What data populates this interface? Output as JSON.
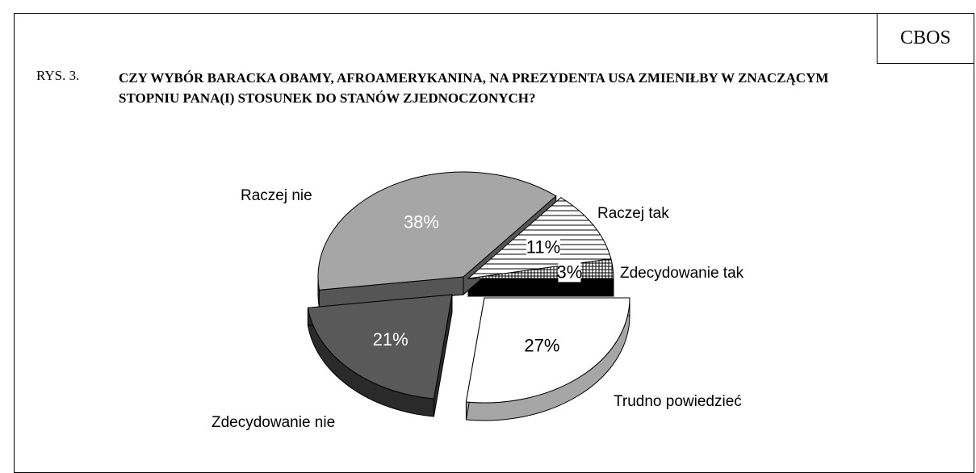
{
  "header": {
    "badge": "CBOS",
    "figure_label": "RYS. 3.",
    "title": "CZY WYBÓR BARACKA OBAMY, AFROAMERYKANINA, NA PREZYDENTA USA ZMIENIŁBY W ZNACZĄCYM STOPNIU PANA(I) STOSUNEK DO STANÓW ZJEDNOCZONYCH?"
  },
  "chart_data": {
    "type": "pie",
    "title": "CZY WYBÓR BARACKA OBAMY, AFROAMERYKANINA, NA PREZYDENTA USA ZMIENIŁBY W ZNACZĄCYM STOPNIU PANA(I) STOSUNEK DO STANÓW ZJEDNOCZONYCH?",
    "slices": [
      {
        "label": "Zdecydowanie tak",
        "value": 3,
        "value_label": "3%"
      },
      {
        "label": "Raczej tak",
        "value": 11,
        "value_label": "11%"
      },
      {
        "label": "Raczej nie",
        "value": 38,
        "value_label": "38%"
      },
      {
        "label": "Zdecydowanie nie",
        "value": 21,
        "value_label": "21%"
      },
      {
        "label": "Trudno powiedzieć",
        "value": 27,
        "value_label": "27%"
      }
    ]
  }
}
